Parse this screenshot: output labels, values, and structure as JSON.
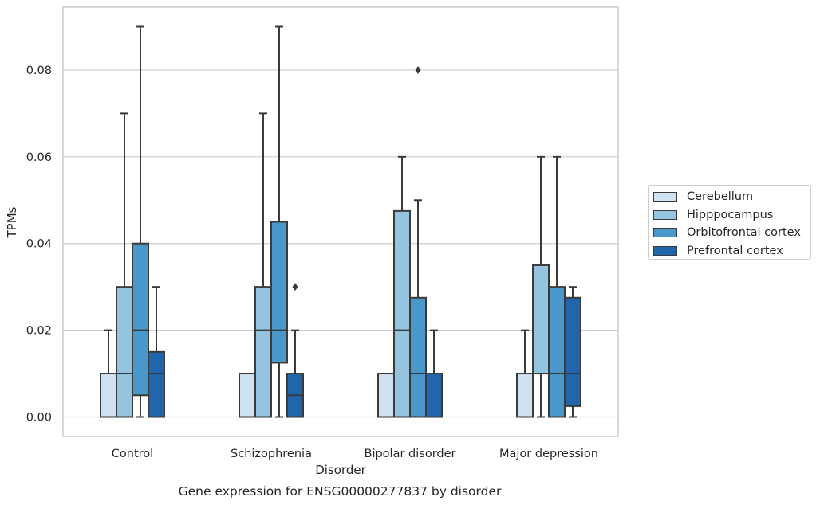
{
  "chart_data": {
    "type": "box",
    "title": "Gene expression for ENSG00000277837 by disorder",
    "xlabel": "Disorder",
    "ylabel": "TPMs",
    "categories": [
      "Control",
      "Schizophrenia",
      "Bipolar disorder",
      "Major depression"
    ],
    "ylim": [
      -0.0045,
      0.0945
    ],
    "yticks": [
      "0.00",
      "0.02",
      "0.04",
      "0.06",
      "0.08"
    ],
    "grid": "horizontal",
    "legend_position": "right",
    "series": [
      {
        "name": "Cerebellum",
        "color": "#d0e1f2",
        "boxes": [
          {
            "min": 0.0,
            "q1": 0.0,
            "median": 0.0,
            "q3": 0.01,
            "max": 0.02,
            "outliers": []
          },
          {
            "min": 0.0,
            "q1": 0.0,
            "median": 0.0,
            "q3": 0.01,
            "max": 0.01,
            "outliers": []
          },
          {
            "min": 0.0,
            "q1": 0.0,
            "median": 0.0,
            "q3": 0.01,
            "max": 0.01,
            "outliers": []
          },
          {
            "min": 0.0,
            "q1": 0.0,
            "median": 0.0,
            "q3": 0.01,
            "max": 0.02,
            "outliers": []
          }
        ]
      },
      {
        "name": "Hipppocampus",
        "color": "#94c4df",
        "boxes": [
          {
            "min": 0.0,
            "q1": 0.0,
            "median": 0.01,
            "q3": 0.03,
            "max": 0.07,
            "outliers": []
          },
          {
            "min": 0.0,
            "q1": 0.0,
            "median": 0.02,
            "q3": 0.03,
            "max": 0.07,
            "outliers": []
          },
          {
            "min": 0.0,
            "q1": 0.0,
            "median": 0.02,
            "q3": 0.0475,
            "max": 0.06,
            "outliers": []
          },
          {
            "min": 0.0,
            "q1": 0.01,
            "median": 0.01,
            "q3": 0.035,
            "max": 0.06,
            "outliers": []
          }
        ]
      },
      {
        "name": "Orbitofrontal cortex",
        "color": "#4a98c9",
        "boxes": [
          {
            "min": 0.0,
            "q1": 0.005,
            "median": 0.02,
            "q3": 0.04,
            "max": 0.09,
            "outliers": []
          },
          {
            "min": 0.0,
            "q1": 0.0125,
            "median": 0.02,
            "q3": 0.045,
            "max": 0.09,
            "outliers": []
          },
          {
            "min": 0.0,
            "q1": 0.0,
            "median": 0.01,
            "q3": 0.0275,
            "max": 0.05,
            "outliers": [
              0.08
            ]
          },
          {
            "min": 0.0,
            "q1": 0.0,
            "median": 0.01,
            "q3": 0.03,
            "max": 0.06,
            "outliers": []
          }
        ]
      },
      {
        "name": "Prefrontal cortex",
        "color": "#2166ac",
        "boxes": [
          {
            "min": 0.0,
            "q1": 0.0,
            "median": 0.01,
            "q3": 0.015,
            "max": 0.03,
            "outliers": []
          },
          {
            "min": 0.0,
            "q1": 0.0,
            "median": 0.005,
            "q3": 0.01,
            "max": 0.02,
            "outliers": [
              0.03
            ]
          },
          {
            "min": 0.0,
            "q1": 0.0,
            "median": 0.0,
            "q3": 0.01,
            "max": 0.02,
            "outliers": []
          },
          {
            "min": 0.0,
            "q1": 0.0025,
            "median": 0.01,
            "q3": 0.0275,
            "max": 0.03,
            "outliers": []
          }
        ]
      }
    ]
  }
}
